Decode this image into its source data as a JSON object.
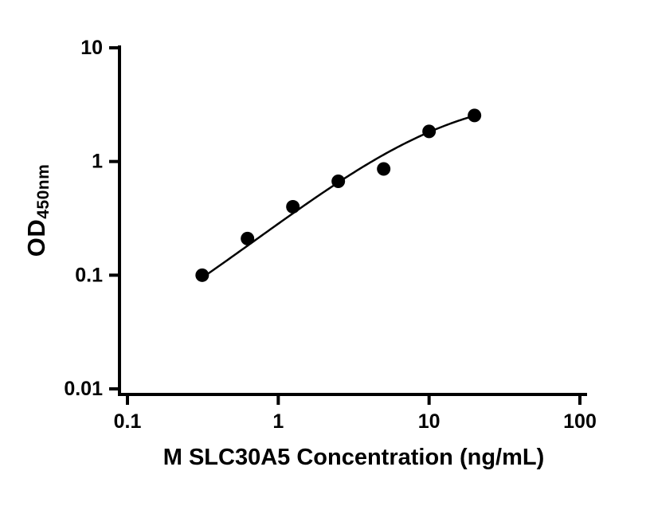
{
  "figure": {
    "background": "#ffffff"
  },
  "chart_data": {
    "type": "scatter",
    "title": "",
    "xlabel": "M SLC30A5 Concentration (ng/mL)",
    "ylabel": "OD450nm",
    "ylabel_main": "OD",
    "ylabel_sub": "450nm",
    "x_scale": "log",
    "y_scale": "log",
    "xlim": [
      0.1,
      100
    ],
    "ylim": [
      0.01,
      10
    ],
    "x_ticks": [
      {
        "value": 0.1,
        "label": "0.1"
      },
      {
        "value": 1,
        "label": "1"
      },
      {
        "value": 10,
        "label": "10"
      },
      {
        "value": 100,
        "label": "100"
      }
    ],
    "y_ticks": [
      {
        "value": 0.01,
        "label": "0.01"
      },
      {
        "value": 0.1,
        "label": "0.1"
      },
      {
        "value": 1,
        "label": "1"
      },
      {
        "value": 10,
        "label": "10"
      }
    ],
    "grid": false,
    "legend": false,
    "points": [
      {
        "x": 0.313,
        "y": 0.1
      },
      {
        "x": 0.625,
        "y": 0.21
      },
      {
        "x": 1.25,
        "y": 0.4
      },
      {
        "x": 2.5,
        "y": 0.67
      },
      {
        "x": 5,
        "y": 0.86
      },
      {
        "x": 10,
        "y": 1.84
      },
      {
        "x": 20,
        "y": 2.54
      }
    ],
    "fit_curve": {
      "model": "4PL",
      "a": 0.01,
      "b": 1.05,
      "c": 12,
      "d": 4,
      "x_start": 0.313,
      "x_end": 20
    },
    "colors": {
      "points": "#000000",
      "curve": "#000000",
      "axis": "#000000",
      "text": "#000000"
    }
  }
}
